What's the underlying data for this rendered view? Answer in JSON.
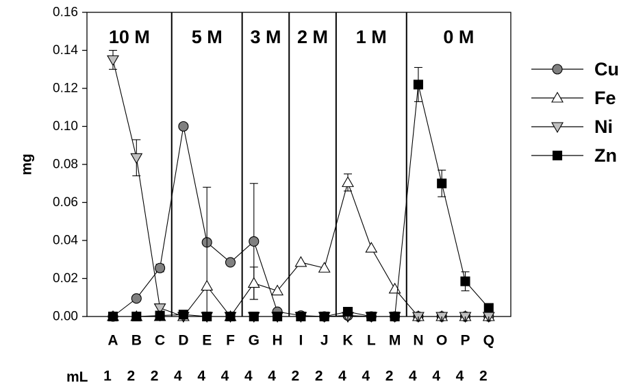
{
  "chart_data": {
    "type": "line",
    "ylabel": "mg",
    "ylim": [
      0,
      0.16
    ],
    "y_ticks": [
      "0.00",
      "0.02",
      "0.04",
      "0.06",
      "0.08",
      "0.10",
      "0.12",
      "0.14",
      "0.16"
    ],
    "categories": [
      "A",
      "B",
      "C",
      "D",
      "E",
      "F",
      "G",
      "H",
      "I",
      "J",
      "K",
      "L",
      "M",
      "N",
      "O",
      "P",
      "Q"
    ],
    "ml_label": "mL",
    "ml_values": [
      "1",
      "2",
      "2",
      "4",
      "4",
      "4",
      "4",
      "4",
      "2",
      "2",
      "4",
      "4",
      "2",
      "4",
      "4",
      "4",
      "2"
    ],
    "concentration_groups": [
      {
        "label": "10 M",
        "from": 0,
        "to": 2
      },
      {
        "label": "5 M",
        "from": 3,
        "to": 5
      },
      {
        "label": "3 M",
        "from": 6,
        "to": 7
      },
      {
        "label": "2 M",
        "from": 8,
        "to": 9
      },
      {
        "label": "1 M",
        "from": 10,
        "to": 12
      },
      {
        "label": "0 M",
        "from": 13,
        "to": 16
      }
    ],
    "legend_position": "right",
    "series": [
      {
        "name": "Cu",
        "marker": "circle",
        "fill": "#808080",
        "values": [
          0.0,
          0.0095,
          0.0255,
          0.1,
          0.039,
          0.0285,
          0.0395,
          0.0025,
          0.0005,
          0.0,
          0.0005,
          0.0,
          0.0,
          0.0,
          0.0,
          0.0,
          0.0
        ],
        "errors": [
          0,
          0,
          0.002,
          0,
          0,
          0,
          0.0305,
          0,
          0,
          0,
          0,
          0,
          0,
          0,
          0,
          0,
          0
        ]
      },
      {
        "name": "Fe",
        "marker": "triangle-up",
        "fill": "#ffffff",
        "values": [
          0.0,
          0.0,
          0.0,
          0.0,
          0.016,
          0.0,
          0.0175,
          0.0135,
          0.0285,
          0.0255,
          0.0705,
          0.036,
          0.0145,
          0.0,
          0.0,
          0.0,
          0.0
        ],
        "errors": [
          0,
          0,
          0,
          0,
          0.052,
          0,
          0.0085,
          0,
          0,
          0,
          0.0045,
          0,
          0,
          0,
          0,
          0,
          0
        ]
      },
      {
        "name": "Ni",
        "marker": "triangle-down",
        "fill": "#c0c0c0",
        "values": [
          0.135,
          0.0835,
          0.0045,
          0.0,
          0.0,
          0.0,
          0.0,
          0.0,
          0.0,
          0.0,
          0.0,
          0.0,
          0.0,
          0.0,
          0.0,
          0.0,
          0.0
        ],
        "errors": [
          0.005,
          0.0095,
          0,
          0,
          0,
          0,
          0,
          0,
          0,
          0,
          0,
          0,
          0,
          0,
          0,
          0,
          0
        ]
      },
      {
        "name": "Zn",
        "marker": "square",
        "fill": "#000000",
        "values": [
          0.0,
          0.0,
          0.0005,
          0.001,
          0.0,
          0.0,
          0.0,
          0.0,
          0.0,
          0.0,
          0.0025,
          0.0,
          0.0,
          0.122,
          0.07,
          0.0185,
          0.0045
        ],
        "errors": [
          0,
          0,
          0,
          0,
          0,
          0,
          0,
          0,
          0,
          0,
          0,
          0,
          0,
          0.009,
          0.007,
          0.005,
          0
        ]
      }
    ]
  }
}
